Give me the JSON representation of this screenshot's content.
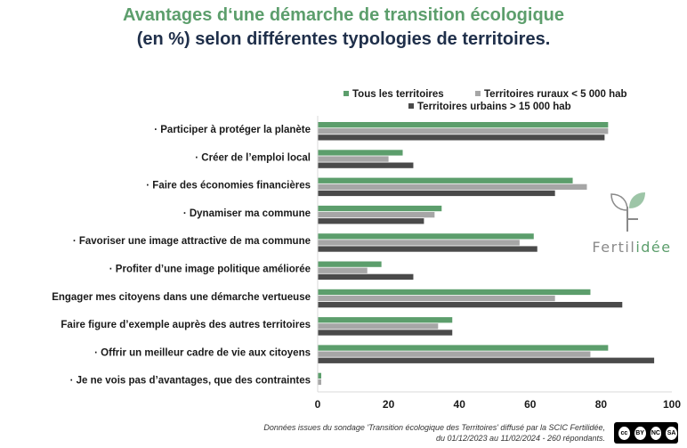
{
  "title_line1": "Avantages d‘une démarche de transition écologique",
  "title_line2": "(en %) selon différentes typologies de territoires.",
  "colors": {
    "green": "#5c9e6c",
    "gray": "#a6a6a6",
    "dark": "#4a4a4a",
    "axis": "#d9d9d9"
  },
  "chart_data": {
    "type": "bar",
    "orientation": "horizontal",
    "categories": [
      "· Participer à protéger la planète",
      "· Créer de l’emploi local",
      "· Faire des économies financières",
      "· Dynamiser ma commune",
      "· Favoriser une image attractive de ma commune",
      "· Profiter d’une image politique améliorée",
      "Engager mes citoyens dans une démarche vertueuse",
      "Faire figure d’exemple auprès des autres territoires",
      "· Offrir un meilleur cadre de vie aux citoyens",
      "· Je ne vois pas d’avantages, que des contraintes"
    ],
    "series": [
      {
        "name": "Tous les territoires",
        "color": "#5c9e6c",
        "values": [
          82,
          24,
          72,
          35,
          61,
          18,
          77,
          38,
          82,
          1
        ]
      },
      {
        "name": "Territoires ruraux < 5 000 hab",
        "color": "#a6a6a6",
        "values": [
          82,
          20,
          76,
          33,
          57,
          14,
          67,
          34,
          77,
          1
        ]
      },
      {
        "name": "Territoires urbains > 15 000 hab",
        "color": "#4a4a4a",
        "values": [
          81,
          27,
          67,
          30,
          62,
          27,
          86,
          38,
          95,
          0
        ]
      }
    ],
    "xlim": [
      0,
      100
    ],
    "xticks": [
      "0",
      "20",
      "40",
      "60",
      "80",
      "100"
    ],
    "legend_position": "top-right",
    "grid": false
  },
  "logo": {
    "brand_prefix": "Fertil",
    "brand_suffix": "idée"
  },
  "footer": {
    "line1": "Données issues du sondage 'Transition écologique des Territoires' diffusé par la SCIC Fertilidée,",
    "line2": "du 01/12/2023 au 11/02/2024 - 260 répondants."
  },
  "license": {
    "badges": [
      "cc",
      "BY",
      "NC",
      "SA"
    ],
    "icon": "cc-by-nc-sa-icon"
  }
}
